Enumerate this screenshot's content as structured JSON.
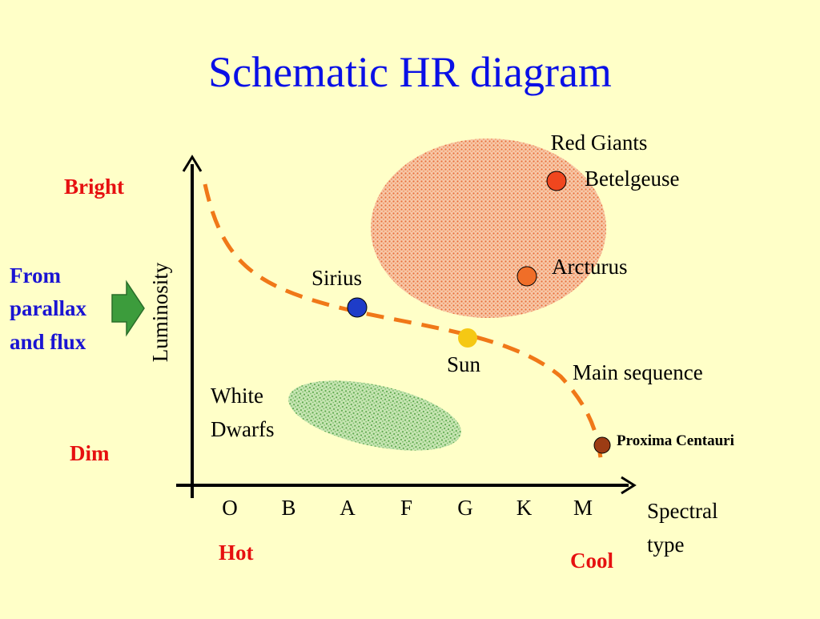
{
  "title": "Schematic HR diagram",
  "axes": {
    "y_label": "Luminosity",
    "y_top": "Bright",
    "y_bottom": "Dim",
    "x_label_line1": "Spectral",
    "x_label_line2": "type",
    "x_left": "Hot",
    "x_right": "Cool",
    "spectral_classes": [
      "O",
      "B",
      "A",
      "F",
      "G",
      "K",
      "M"
    ]
  },
  "note": {
    "line1": "From",
    "line2": "parallax",
    "line3": "and flux"
  },
  "regions": {
    "red_giants": "Red Giants",
    "white_dwarfs_line1": "White",
    "white_dwarfs_line2": "Dwarfs",
    "main_sequence": "Main sequence"
  },
  "stars": {
    "betelgeuse": "Betelgeuse",
    "arcturus": "Arcturus",
    "sirius": "Sirius",
    "sun": "Sun",
    "proxima": "Proxima Centauri"
  },
  "colors": {
    "title": "#0a10e6",
    "red_label": "#e61010",
    "blue_label": "#1a14d2",
    "main_sequence": "#f07818",
    "red_giants_fill": "#f4a478",
    "white_dwarfs_fill": "#8cc87c",
    "arrow": "#3c9c3c",
    "betelgeuse": "#f0461e",
    "arcturus": "#f06e28",
    "sirius": "#1e3cc8",
    "sun": "#f5c814",
    "proxima": "#9c3c14"
  }
}
